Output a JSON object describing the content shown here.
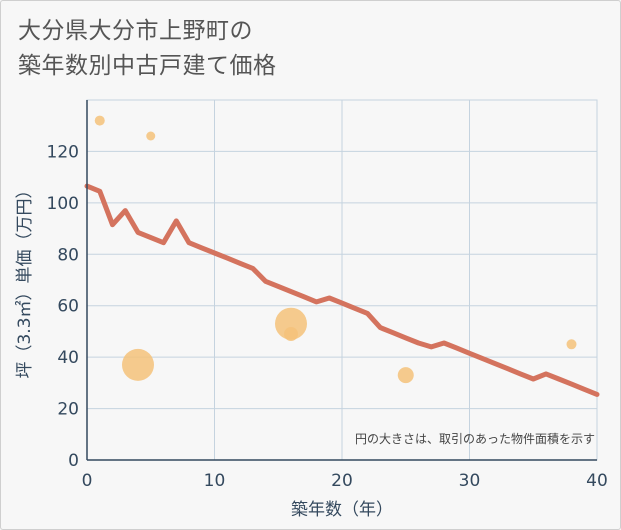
{
  "chart_data": {
    "type": "scatter+line",
    "title_lines": [
      "大分県大分市上野町の",
      "築年数別中古戸建て価格"
    ],
    "xlabel": "築年数（年）",
    "ylabel": "坪（3.3㎡）単価（万円）",
    "xlim": [
      0,
      40
    ],
    "ylim": [
      0,
      140
    ],
    "xticks": [
      0,
      10,
      20,
      30,
      40
    ],
    "yticks": [
      0,
      20,
      40,
      60,
      80,
      100,
      120
    ],
    "grid": true,
    "note": "円の大きさは、取引のあった物件面積を示す",
    "colors": {
      "line": "#d4735e",
      "bubble": "#f5c27a",
      "grid": "#c5d3df",
      "axis": "#34495e"
    },
    "line": {
      "x": [
        0,
        1,
        2,
        3,
        4,
        5,
        6,
        7,
        8,
        9,
        10,
        11,
        12,
        13,
        14,
        15,
        16,
        17,
        18,
        19,
        20,
        21,
        22,
        23,
        24,
        25,
        26,
        27,
        28,
        29,
        30,
        31,
        32,
        33,
        34,
        35,
        36,
        37,
        38,
        39,
        40
      ],
      "y": [
        106.5,
        104.5,
        91.5,
        97,
        88.5,
        86.5,
        84.5,
        93,
        84.5,
        82.5,
        80.5,
        78.5,
        76.5,
        74.5,
        69.5,
        67.5,
        65.5,
        63.5,
        61.5,
        63,
        61,
        59,
        57,
        51.5,
        49.5,
        47.5,
        45.5,
        44,
        45.5,
        43.5,
        41.5,
        39.5,
        37.5,
        35.5,
        33.5,
        31.5,
        33.5,
        31.5,
        29.5,
        27.5,
        25.5
      ]
    },
    "bubbles": [
      {
        "x": 1,
        "y": 132,
        "size": 5
      },
      {
        "x": 5,
        "y": 126,
        "size": 4.5
      },
      {
        "x": 4,
        "y": 37,
        "size": 16
      },
      {
        "x": 16,
        "y": 53,
        "size": 16
      },
      {
        "x": 16,
        "y": 49,
        "size": 7
      },
      {
        "x": 25,
        "y": 33,
        "size": 8
      },
      {
        "x": 38,
        "y": 45,
        "size": 5
      }
    ]
  }
}
